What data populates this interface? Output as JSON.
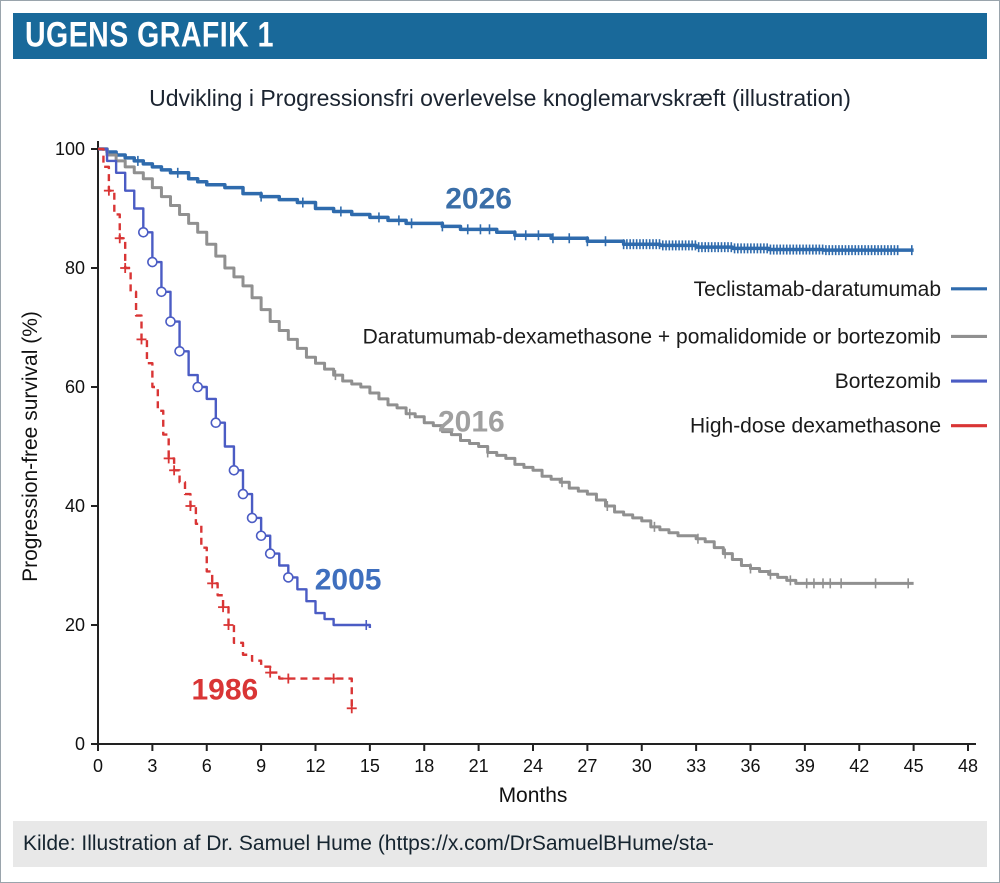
{
  "page": {
    "banner_title": "UGENS GRAFIK 1",
    "chart_title": "Udvikling i Progressionsfri overlevelse knoglemarvskræft  (illustration)",
    "source_text": "Kilde:  Illustration af Dr. Samuel Hume (https://x.com/DrSamuelBHume/sta-",
    "colors": {
      "banner_bg": "#19699a",
      "source_bg": "#e8e8e8",
      "axis": "#222222",
      "title_text": "#1b2430"
    }
  },
  "chart_data": {
    "type": "line",
    "subtype": "kaplan-meier-step",
    "title": "Udvikling i Progressionsfri overlevelse knoglemarvskræft (illustration)",
    "xlabel": "Months",
    "ylabel": "Progression-free survival (%)",
    "xlim": [
      0,
      48
    ],
    "ylim": [
      0,
      100
    ],
    "xticks": [
      0,
      3,
      6,
      9,
      12,
      15,
      18,
      21,
      24,
      27,
      30,
      33,
      36,
      39,
      42,
      45,
      48
    ],
    "yticks": [
      0,
      20,
      40,
      60,
      80,
      100
    ],
    "grid": false,
    "legend_position": "inside-right",
    "series": [
      {
        "name": "Teclistamab-daratumumab",
        "color": "#2f6bad",
        "width": 3.5,
        "dash": null,
        "marker": null,
        "annotation": {
          "text": "2026",
          "x": 21,
          "y": 90,
          "color": "#3a6ea8"
        },
        "points": [
          [
            0,
            100
          ],
          [
            0.5,
            99.5
          ],
          [
            1,
            99
          ],
          [
            1.5,
            98.5
          ],
          [
            2,
            98
          ],
          [
            2.5,
            97.5
          ],
          [
            3,
            97
          ],
          [
            3.5,
            96.5
          ],
          [
            4,
            96
          ],
          [
            5,
            95
          ],
          [
            5.5,
            94.5
          ],
          [
            6,
            94
          ],
          [
            7,
            93.5
          ],
          [
            8,
            92.5
          ],
          [
            9,
            92
          ],
          [
            10,
            91.5
          ],
          [
            11,
            91
          ],
          [
            12,
            90
          ],
          [
            13,
            89.5
          ],
          [
            14,
            89
          ],
          [
            15,
            88.5
          ],
          [
            16,
            88
          ],
          [
            17,
            87.5
          ],
          [
            19,
            87
          ],
          [
            20,
            86.5
          ],
          [
            22,
            86
          ],
          [
            23,
            85.5
          ],
          [
            25,
            85
          ],
          [
            27,
            84.5
          ],
          [
            29,
            84
          ],
          [
            31,
            83.8
          ],
          [
            33,
            83.5
          ],
          [
            35,
            83.3
          ],
          [
            37,
            83.1
          ],
          [
            40,
            83
          ],
          [
            45,
            83
          ]
        ],
        "censors": [
          2.2,
          4.4,
          9,
          11.3,
          13.4,
          15.5,
          16.6,
          17.3,
          19,
          20.4,
          21.1,
          21.6,
          23,
          23.6,
          24.3,
          25.1,
          26,
          27,
          28,
          44.9
        ],
        "censor_ranges": [
          [
            29,
            44.2,
            0.18
          ]
        ],
        "marker_x": []
      },
      {
        "name": "Daratumumab-dexamethasone + pomalidomide or bortezomib",
        "color": "#909090",
        "width": 3,
        "dash": null,
        "marker": null,
        "annotation": {
          "text": "2016",
          "x": 20.6,
          "y": 52.5,
          "color": "#a0a0a0"
        },
        "points": [
          [
            0,
            100
          ],
          [
            0.5,
            99
          ],
          [
            1,
            98
          ],
          [
            1.5,
            97
          ],
          [
            2,
            96
          ],
          [
            2.5,
            95
          ],
          [
            3,
            93.5
          ],
          [
            3.5,
            92
          ],
          [
            4,
            90.5
          ],
          [
            4.5,
            89
          ],
          [
            5,
            87.5
          ],
          [
            5.5,
            86
          ],
          [
            6,
            84
          ],
          [
            6.5,
            82
          ],
          [
            7,
            80
          ],
          [
            7.5,
            78.5
          ],
          [
            8,
            77
          ],
          [
            8.5,
            75
          ],
          [
            9,
            73
          ],
          [
            9.5,
            71
          ],
          [
            10,
            69.5
          ],
          [
            10.5,
            68
          ],
          [
            11,
            66.5
          ],
          [
            11.5,
            65
          ],
          [
            12,
            64
          ],
          [
            12.5,
            63
          ],
          [
            13,
            62
          ],
          [
            13.5,
            61
          ],
          [
            14,
            60.5
          ],
          [
            14.5,
            60
          ],
          [
            15,
            59
          ],
          [
            15.5,
            58
          ],
          [
            16,
            57
          ],
          [
            16.5,
            56.5
          ],
          [
            17,
            55.5
          ],
          [
            17.5,
            55
          ],
          [
            18,
            54
          ],
          [
            18.5,
            53.5
          ],
          [
            19,
            52.5
          ],
          [
            19.5,
            52
          ],
          [
            20,
            51
          ],
          [
            20.5,
            50.5
          ],
          [
            21,
            50
          ],
          [
            21.5,
            49
          ],
          [
            22,
            48.5
          ],
          [
            22.5,
            48
          ],
          [
            23,
            47
          ],
          [
            23.5,
            46.5
          ],
          [
            24,
            46
          ],
          [
            24.5,
            45
          ],
          [
            25,
            44.5
          ],
          [
            25.5,
            44
          ],
          [
            26,
            43
          ],
          [
            26.5,
            42.5
          ],
          [
            27,
            42
          ],
          [
            27.5,
            41
          ],
          [
            28,
            40
          ],
          [
            28.5,
            39
          ],
          [
            29,
            38.5
          ],
          [
            29.5,
            38
          ],
          [
            30,
            37.5
          ],
          [
            30.5,
            36.5
          ],
          [
            31,
            36
          ],
          [
            31.5,
            35.5
          ],
          [
            32,
            35
          ],
          [
            33,
            34.5
          ],
          [
            33.5,
            34
          ],
          [
            34,
            33
          ],
          [
            34.5,
            32
          ],
          [
            35,
            31
          ],
          [
            35.5,
            30
          ],
          [
            36,
            29.5
          ],
          [
            36.5,
            29
          ],
          [
            37,
            28.5
          ],
          [
            37.5,
            28
          ],
          [
            38,
            27.5
          ],
          [
            38.5,
            27
          ],
          [
            39,
            27
          ],
          [
            45,
            27
          ]
        ],
        "censors": [
          13.1,
          17.2,
          21.5,
          25.6,
          28.1,
          30.7,
          33.1,
          34.6,
          36,
          37.1,
          38.2,
          39.1,
          39.5,
          40,
          40.4,
          41,
          42.9,
          44.7
        ],
        "censor_ranges": [],
        "marker_x": []
      },
      {
        "name": "Bortezomib",
        "color": "#4b5cc4",
        "width": 2.4,
        "dash": null,
        "marker": "circle",
        "annotation": {
          "text": "2005",
          "x": 13.8,
          "y": 26,
          "color": "#3f6fbe"
        },
        "points": [
          [
            0,
            100
          ],
          [
            0.5,
            98
          ],
          [
            1,
            96
          ],
          [
            1.5,
            93
          ],
          [
            2,
            90
          ],
          [
            2.5,
            86
          ],
          [
            3,
            81
          ],
          [
            3.5,
            76
          ],
          [
            4,
            71
          ],
          [
            4.5,
            66
          ],
          [
            5,
            62
          ],
          [
            5.5,
            60
          ],
          [
            6,
            58
          ],
          [
            6.5,
            54
          ],
          [
            7,
            50
          ],
          [
            7.5,
            46
          ],
          [
            8,
            42
          ],
          [
            8.5,
            38
          ],
          [
            9,
            35
          ],
          [
            9.5,
            32
          ],
          [
            10,
            30
          ],
          [
            10.5,
            28
          ],
          [
            11,
            26
          ],
          [
            11.5,
            24
          ],
          [
            12,
            22
          ],
          [
            12.5,
            21
          ],
          [
            13,
            20
          ],
          [
            14,
            20
          ],
          [
            15,
            19.5
          ]
        ],
        "censors": [
          14.8
        ],
        "censor_ranges": [],
        "marker_x": [
          2.5,
          3,
          3.5,
          4,
          4.5,
          5.5,
          6.5,
          7.5,
          8,
          8.5,
          9,
          9.5,
          10.5
        ]
      },
      {
        "name": "High-dose dexamethasone",
        "color": "#d93535",
        "width": 2.4,
        "dash": "7,5",
        "marker": "plus",
        "annotation": {
          "text": "1986",
          "x": 7,
          "y": 7.5,
          "color": "#d93535"
        },
        "points": [
          [
            0,
            100
          ],
          [
            0.3,
            97
          ],
          [
            0.6,
            93
          ],
          [
            0.9,
            89
          ],
          [
            1.2,
            85
          ],
          [
            1.5,
            80
          ],
          [
            1.8,
            76
          ],
          [
            2.1,
            72
          ],
          [
            2.4,
            68
          ],
          [
            2.7,
            64
          ],
          [
            3,
            60
          ],
          [
            3.3,
            56
          ],
          [
            3.6,
            52
          ],
          [
            3.9,
            48
          ],
          [
            4.2,
            46
          ],
          [
            4.5,
            44
          ],
          [
            4.8,
            42
          ],
          [
            5.1,
            40
          ],
          [
            5.4,
            37
          ],
          [
            5.7,
            33
          ],
          [
            6,
            29
          ],
          [
            6.3,
            27
          ],
          [
            6.6,
            25
          ],
          [
            6.9,
            23
          ],
          [
            7.2,
            20
          ],
          [
            7.5,
            17
          ],
          [
            8,
            15
          ],
          [
            8.5,
            14
          ],
          [
            9,
            13
          ],
          [
            9.5,
            12
          ],
          [
            10,
            11
          ],
          [
            13.5,
            11
          ],
          [
            14,
            6
          ]
        ],
        "censors": [],
        "censor_ranges": [],
        "marker_x": [
          0.6,
          1.2,
          1.5,
          2.4,
          3.9,
          4.2,
          5.1,
          6.3,
          6.9,
          7.2,
          9.5,
          10.5,
          13,
          14
        ]
      }
    ],
    "legend": {
      "entries": [
        {
          "label": "Teclistamab-daratumumab",
          "color": "#2f6bad",
          "y": 76.5
        },
        {
          "label": "Daratumumab-dexamethasone + pomalidomide or bortezomib",
          "color": "#909090",
          "y": 68.5
        },
        {
          "label": "Bortezomib",
          "color": "#4b5cc4",
          "y": 61
        },
        {
          "label": "High-dose dexamethasone",
          "color": "#d93535",
          "y": 53.5
        }
      ]
    }
  }
}
